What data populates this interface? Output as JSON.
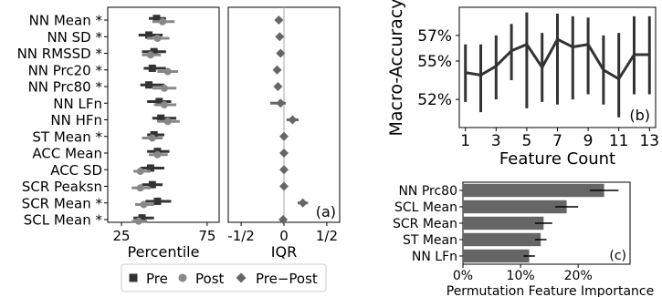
{
  "chart_data": [
    {
      "id": "a-percentile",
      "type": "scatter",
      "features": [
        "NN Mean *",
        "NN SD *",
        "NN RMSSD *",
        "NN Prc20 *",
        "NN Prc80 *",
        "NN LFn",
        "NN HFn",
        "ST Mean *",
        "ACC Mean",
        "ACC SD",
        "SCR Peaksn",
        "SCR Mean *",
        "SCL Mean *"
      ],
      "xlabel": "Percentile",
      "xticks": [
        25,
        75
      ],
      "xlim": [
        17,
        82
      ],
      "series": [
        {
          "name": "Pre",
          "color": "#333333",
          "marker": "square",
          "values": [
            45.5,
            41,
            44,
            43,
            41,
            47,
            48,
            44,
            46,
            42,
            43,
            46,
            37
          ],
          "err_low": [
            41,
            35,
            37,
            38,
            36,
            40,
            43,
            40,
            40,
            36,
            37,
            39,
            32
          ],
          "err_high": [
            51,
            49,
            51,
            51,
            50,
            54,
            57,
            50,
            53,
            50,
            49,
            54,
            44
          ]
        },
        {
          "name": "Post",
          "color": "#888888",
          "marker": "circle",
          "values": [
            49,
            46,
            42,
            52,
            50,
            50,
            52,
            43,
            46,
            36,
            36,
            38,
            35
          ],
          "err_low": [
            43,
            40,
            37,
            46,
            43,
            44,
            46,
            37,
            41,
            32,
            31,
            33,
            31
          ],
          "err_high": [
            56,
            53,
            48,
            58,
            57,
            57,
            59,
            49,
            52,
            42,
            42,
            44,
            40
          ]
        }
      ]
    },
    {
      "id": "a-iqr",
      "type": "scatter",
      "xlabel": "IQR",
      "xticks": [
        "-1/2",
        "0",
        "1/2"
      ],
      "xlim": [
        -0.65,
        0.65
      ],
      "annotation": "(a)",
      "series": [
        {
          "name": "Pre−Post",
          "color": "#666666",
          "marker": "diamond",
          "values": [
            -0.06,
            -0.05,
            -0.04,
            -0.08,
            -0.07,
            -0.04,
            0.1,
            0.0,
            0.0,
            0.0,
            0.0,
            0.22,
            -0.01
          ],
          "err_low": [
            -0.09,
            -0.08,
            -0.08,
            -0.11,
            -0.1,
            -0.16,
            0.03,
            -0.02,
            -0.02,
            -0.02,
            -0.02,
            0.16,
            -0.03
          ],
          "err_high": [
            -0.03,
            -0.02,
            0.0,
            -0.05,
            -0.04,
            0.02,
            0.17,
            0.02,
            0.02,
            0.02,
            0.02,
            0.28,
            0.01
          ]
        }
      ]
    },
    {
      "id": "b",
      "type": "line",
      "xlabel": "Feature Count",
      "ylabel": "Macro-Accuracy",
      "x": [
        1,
        2,
        3,
        4,
        5,
        6,
        7,
        8,
        9,
        10,
        11,
        12,
        13
      ],
      "xticks": [
        1,
        3,
        5,
        7,
        9,
        11,
        13
      ],
      "yticks": [
        "52%",
        "55%",
        "57%"
      ],
      "ytick_values": [
        52,
        55,
        57
      ],
      "xlim": [
        0.6,
        13.4
      ],
      "ylim": [
        49.8,
        59.2
      ],
      "annotation": "(b)",
      "series": [
        {
          "values": [
            54.1,
            53.9,
            54.6,
            55.8,
            56.3,
            54.5,
            56.7,
            56.1,
            56.3,
            54.3,
            53.6,
            55.5,
            55.5
          ],
          "err_low": [
            51.8,
            51.0,
            52.0,
            53.5,
            51.3,
            51.8,
            51.6,
            52.0,
            52.4,
            51.6,
            50.6,
            52.4,
            52.4
          ],
          "err_high": [
            56.3,
            56.3,
            57.0,
            57.9,
            58.8,
            57.2,
            58.7,
            58.5,
            58.4,
            57.0,
            57.2,
            58.5,
            58.5
          ]
        }
      ]
    },
    {
      "id": "c",
      "type": "bar",
      "orientation": "horizontal",
      "xlabel": "Permutation Feature Importance",
      "categories": [
        "NN Prc80",
        "SCL Mean",
        "SCR Mean",
        "ST Mean",
        "NN LFn"
      ],
      "values": [
        24.5,
        18,
        14,
        13.5,
        11.5
      ],
      "err": [
        2.5,
        2.0,
        1.5,
        1.0,
        1.0
      ],
      "xticks": [
        "0%",
        "10%",
        "20%"
      ],
      "xtick_values": [
        0,
        10,
        20
      ],
      "xlim": [
        0,
        29
      ],
      "annotation": "(c)"
    }
  ],
  "legend": [
    {
      "label": "Pre",
      "marker": "square",
      "color": "#333333"
    },
    {
      "label": "Post",
      "marker": "circle",
      "color": "#888888"
    },
    {
      "label": "Pre−Post",
      "marker": "diamond",
      "color": "#666666"
    }
  ]
}
